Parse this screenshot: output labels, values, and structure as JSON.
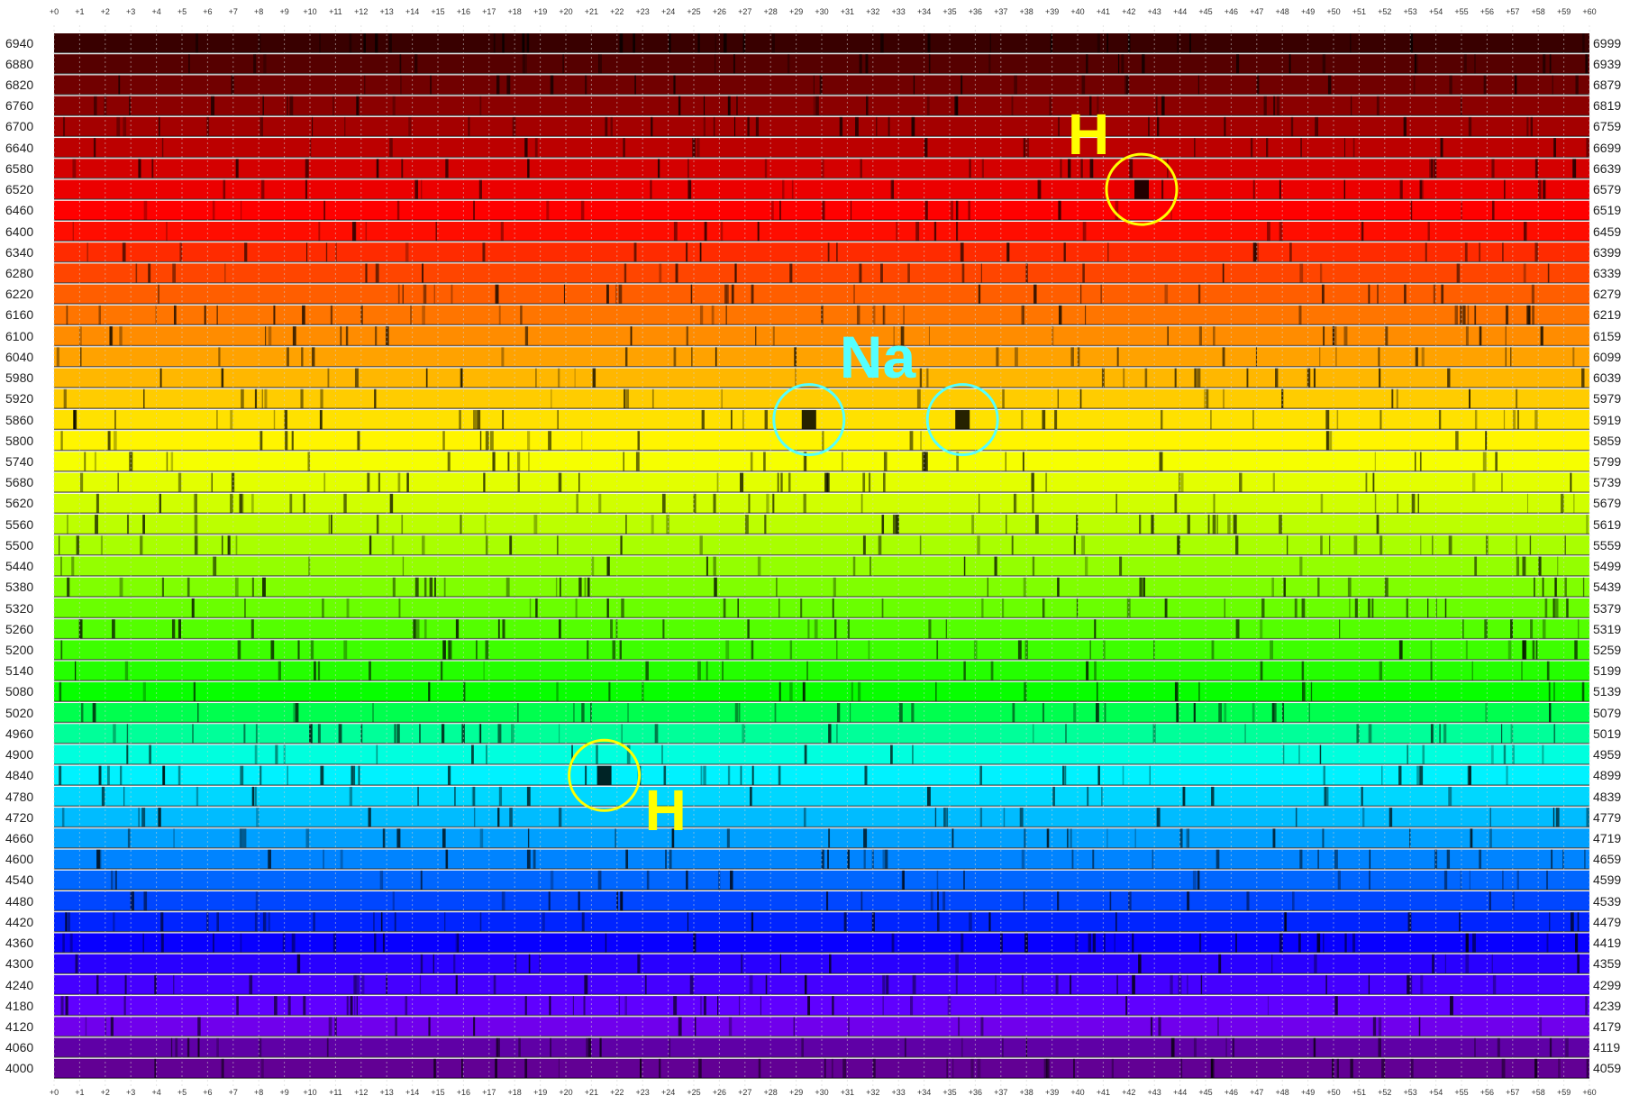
{
  "chart_data": {
    "type": "heatmap",
    "description_type": "solar absorption spectrum, echelle-style rows",
    "left_axis_labels": [
      "6940",
      "6880",
      "6820",
      "6760",
      "6700",
      "6640",
      "6580",
      "6520",
      "6460",
      "6400",
      "6340",
      "6280",
      "6220",
      "6160",
      "6100",
      "6040",
      "5980",
      "5920",
      "5860",
      "5800",
      "5740",
      "5680",
      "5620",
      "5560",
      "5500",
      "5440",
      "5380",
      "5320",
      "5260",
      "5200",
      "5140",
      "5080",
      "5020",
      "4960",
      "4900",
      "4840",
      "4780",
      "4720",
      "4660",
      "4600",
      "4540",
      "4480",
      "4420",
      "4360",
      "4300",
      "4240",
      "4180",
      "4120",
      "4060",
      "4000"
    ],
    "right_axis_labels": [
      "6999",
      "6939",
      "6879",
      "6819",
      "6759",
      "6699",
      "6639",
      "6579",
      "6519",
      "6459",
      "6399",
      "6339",
      "6279",
      "6219",
      "6159",
      "6099",
      "6039",
      "5979",
      "5919",
      "5859",
      "5799",
      "5739",
      "5679",
      "5619",
      "5559",
      "5499",
      "5439",
      "5379",
      "5319",
      "5259",
      "5199",
      "5139",
      "5079",
      "5019",
      "4959",
      "4899",
      "4839",
      "4779",
      "4719",
      "4659",
      "4599",
      "4539",
      "4479",
      "4419",
      "4359",
      "4299",
      "4239",
      "4179",
      "4119",
      "4059"
    ],
    "top_axis_labels": [
      "+0",
      "+1",
      "+2",
      "+3",
      "+4",
      "+5",
      "+6",
      "+7",
      "+8",
      "+9",
      "+10",
      "+11",
      "+12",
      "+13",
      "+14",
      "+15",
      "+16",
      "+17",
      "+18",
      "+19",
      "+20",
      "+21",
      "+22",
      "+23",
      "+24",
      "+25",
      "+26",
      "+27",
      "+28",
      "+29",
      "+30",
      "+31",
      "+32",
      "+33",
      "+34",
      "+35",
      "+36",
      "+37",
      "+38",
      "+39",
      "+40",
      "+41",
      "+42",
      "+43",
      "+44",
      "+45",
      "+46",
      "+47",
      "+48",
      "+49",
      "+50",
      "+51",
      "+52",
      "+53",
      "+54",
      "+55",
      "+56",
      "+57",
      "+58",
      "+59",
      "+60"
    ],
    "bottom_axis_labels": [
      "+0",
      "+1",
      "+2",
      "+3",
      "+4",
      "+5",
      "+6",
      "+7",
      "+8",
      "+9",
      "+10",
      "+11",
      "+12",
      "+13",
      "+14",
      "+15",
      "+16",
      "+17",
      "+18",
      "+19",
      "+20",
      "+21",
      "+22",
      "+23",
      "+24",
      "+25",
      "+26",
      "+27",
      "+28",
      "+29",
      "+30",
      "+31",
      "+32",
      "+33",
      "+34",
      "+35",
      "+36",
      "+37",
      "+38",
      "+39",
      "+40",
      "+41",
      "+42",
      "+43",
      "+44",
      "+45",
      "+46",
      "+47",
      "+48",
      "+49",
      "+50",
      "+51",
      "+52",
      "+53",
      "+54",
      "+55",
      "+56",
      "+57",
      "+58",
      "+59",
      "+60"
    ],
    "row_step": 60,
    "column_step": 1,
    "annotations": [
      {
        "label": "H",
        "row_start": 6520,
        "offset": 42,
        "color": "#ffff00"
      },
      {
        "label": "Na",
        "row_start": 5860,
        "offset": 29,
        "color": "#55ffff"
      },
      {
        "label": "Na",
        "row_start": 5860,
        "offset": 35,
        "color": "#55ffff"
      },
      {
        "label": "H",
        "row_start": 4840,
        "offset": 21,
        "color": "#ffff00"
      }
    ],
    "colors": {
      "background": "#ffffff",
      "grid_dotted": "#cfcfcf",
      "annotation_H": "#ffff00",
      "annotation_Na": "#55ffff"
    }
  }
}
